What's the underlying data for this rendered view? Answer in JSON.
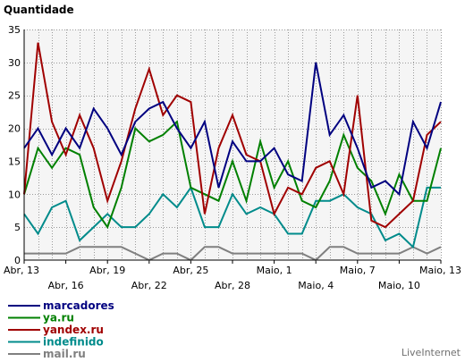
{
  "chart_data": {
    "type": "line",
    "ylabel": "Quantidade",
    "ylim": [
      0,
      35
    ],
    "yticks": [
      0,
      5,
      10,
      15,
      20,
      25,
      30,
      35
    ],
    "grid": true,
    "x_tick_labels": [
      {
        "index": 0,
        "label": "Abr, 13"
      },
      {
        "index": 3,
        "label": "Abr, 16"
      },
      {
        "index": 6,
        "label": "Abr, 19"
      },
      {
        "index": 9,
        "label": "Abr, 22"
      },
      {
        "index": 12,
        "label": "Abr, 25"
      },
      {
        "index": 15,
        "label": "Abr, 28"
      },
      {
        "index": 18,
        "label": "Maio, 1"
      },
      {
        "index": 21,
        "label": "Maio, 4"
      },
      {
        "index": 24,
        "label": "Maio, 7"
      },
      {
        "index": 27,
        "label": "Maio, 10"
      },
      {
        "index": 30,
        "label": "Maio, 13"
      }
    ],
    "series": [
      {
        "name": "marcadores",
        "color": "#000080",
        "values": [
          17,
          20,
          16,
          20,
          17,
          23,
          20,
          16,
          21,
          23,
          24,
          20,
          17,
          21,
          11,
          18,
          15,
          15,
          17,
          13,
          12,
          30,
          19,
          22,
          17,
          11,
          12,
          10,
          21,
          17,
          24
        ]
      },
      {
        "name": "ya.ru",
        "color": "#008000",
        "values": [
          10,
          17,
          14,
          17,
          16,
          8,
          5,
          11,
          20,
          18,
          19,
          21,
          11,
          10,
          9,
          15,
          9,
          18,
          11,
          15,
          9,
          8,
          12,
          19,
          14,
          12,
          7,
          13,
          9,
          9,
          17
        ]
      },
      {
        "name": "yandex.ru",
        "color": "#a00000",
        "values": [
          10,
          33,
          21,
          16,
          22,
          17,
          9,
          15,
          23,
          29,
          22,
          25,
          24,
          7,
          17,
          22,
          16,
          15,
          7,
          11,
          10,
          14,
          15,
          10,
          25,
          6,
          5,
          7,
          9,
          19,
          21
        ]
      },
      {
        "name": "indefinido",
        "color": "#008b8b",
        "values": [
          7,
          4,
          8,
          9,
          3,
          5,
          7,
          5,
          5,
          7,
          10,
          8,
          11,
          5,
          5,
          10,
          7,
          8,
          7,
          4,
          4,
          9,
          9,
          10,
          8,
          7,
          3,
          4,
          2,
          11,
          11
        ]
      },
      {
        "name": "mail.ru",
        "color": "#808080",
        "values": [
          1,
          1,
          1,
          1,
          2,
          2,
          2,
          2,
          1,
          0,
          1,
          1,
          0,
          2,
          2,
          1,
          1,
          1,
          1,
          1,
          1,
          0,
          2,
          2,
          1,
          1,
          1,
          1,
          2,
          1,
          2
        ]
      }
    ]
  },
  "brand": "LiveInternet"
}
